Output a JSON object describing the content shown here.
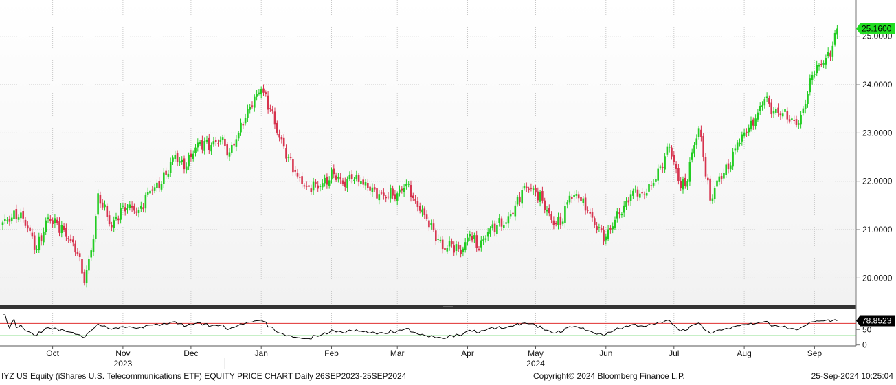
{
  "chart_data": {
    "type": "candlestick",
    "title": "",
    "security": "IYZ US Equity (iShares U.S. Telecommunications ETF)",
    "chart_kind": "EQUITY PRICE CHART",
    "period": "Daily 26SEP2023-25SEP2024",
    "copyright": "Copyright© 2024 Bloomberg Finance L.P.",
    "timestamp": "25-Sep-2024 10:25:04",
    "last_price": 25.16,
    "last_price_label": "25.1600",
    "price_axis": {
      "ylim": [
        19.45,
        25.75
      ],
      "ticks": [
        20,
        21,
        22,
        23,
        24,
        25
      ],
      "tick_labels": [
        "20.0000",
        "21.0000",
        "22.0000",
        "23.0000",
        "24.0000",
        "25.0000"
      ],
      "position": "right"
    },
    "x_axis": {
      "months": [
        {
          "label": "Oct",
          "offset": 22
        },
        {
          "label": "Nov",
          "offset": 53
        },
        {
          "label": "Dec",
          "offset": 83
        },
        {
          "label": "Jan",
          "offset": 114
        },
        {
          "label": "Feb",
          "offset": 145
        },
        {
          "label": "Mar",
          "offset": 174
        },
        {
          "label": "Apr",
          "offset": 205
        },
        {
          "label": "May",
          "offset": 235
        },
        {
          "label": "Jun",
          "offset": 266
        },
        {
          "label": "Jul",
          "offset": 296
        },
        {
          "label": "Aug",
          "offset": 327
        },
        {
          "label": "Sep",
          "offset": 358
        }
      ],
      "years": [
        {
          "label": "2023",
          "offset": 53
        },
        {
          "label": "2024",
          "offset": 235
        }
      ],
      "year_divider_offset": 98
    },
    "close_anchors": [
      [
        0,
        21.15
      ],
      [
        8,
        21.35
      ],
      [
        15,
        20.6
      ],
      [
        20,
        21.25
      ],
      [
        27,
        21.0
      ],
      [
        33,
        20.5
      ],
      [
        36,
        19.9
      ],
      [
        40,
        20.8
      ],
      [
        42,
        21.75
      ],
      [
        48,
        21.05
      ],
      [
        53,
        21.5
      ],
      [
        60,
        21.4
      ],
      [
        65,
        21.8
      ],
      [
        70,
        21.95
      ],
      [
        76,
        22.55
      ],
      [
        80,
        22.25
      ],
      [
        86,
        22.8
      ],
      [
        92,
        22.75
      ],
      [
        96,
        22.85
      ],
      [
        100,
        22.6
      ],
      [
        104,
        23.0
      ],
      [
        108,
        23.5
      ],
      [
        114,
        23.9
      ],
      [
        118,
        23.5
      ],
      [
        122,
        22.9
      ],
      [
        126,
        22.5
      ],
      [
        130,
        22.1
      ],
      [
        134,
        21.9
      ],
      [
        140,
        21.9
      ],
      [
        146,
        22.15
      ],
      [
        150,
        21.95
      ],
      [
        154,
        22.05
      ],
      [
        158,
        22.0
      ],
      [
        162,
        21.8
      ],
      [
        168,
        21.7
      ],
      [
        174,
        21.75
      ],
      [
        178,
        21.95
      ],
      [
        182,
        21.6
      ],
      [
        186,
        21.3
      ],
      [
        190,
        21.0
      ],
      [
        194,
        20.6
      ],
      [
        198,
        20.7
      ],
      [
        202,
        20.5
      ],
      [
        206,
        20.9
      ],
      [
        210,
        20.6
      ],
      [
        214,
        20.95
      ],
      [
        218,
        21.1
      ],
      [
        222,
        21.15
      ],
      [
        226,
        21.5
      ],
      [
        230,
        21.9
      ],
      [
        234,
        21.85
      ],
      [
        238,
        21.6
      ],
      [
        242,
        21.2
      ],
      [
        246,
        21.1
      ],
      [
        250,
        21.7
      ],
      [
        254,
        21.65
      ],
      [
        258,
        21.4
      ],
      [
        262,
        21.0
      ],
      [
        266,
        20.85
      ],
      [
        270,
        21.2
      ],
      [
        274,
        21.5
      ],
      [
        278,
        21.8
      ],
      [
        282,
        21.75
      ],
      [
        286,
        21.9
      ],
      [
        290,
        22.3
      ],
      [
        294,
        22.7
      ],
      [
        296,
        22.4
      ],
      [
        298,
        22.0
      ],
      [
        301,
        21.9
      ],
      [
        304,
        22.6
      ],
      [
        307,
        23.1
      ],
      [
        309,
        22.5
      ],
      [
        312,
        21.6
      ],
      [
        316,
        22.1
      ],
      [
        320,
        22.25
      ],
      [
        324,
        22.8
      ],
      [
        328,
        23.0
      ],
      [
        332,
        23.3
      ],
      [
        336,
        23.7
      ],
      [
        340,
        23.45
      ],
      [
        344,
        23.4
      ],
      [
        348,
        23.3
      ],
      [
        351,
        23.2
      ],
      [
        354,
        23.6
      ],
      [
        357,
        24.2
      ],
      [
        360,
        24.4
      ],
      [
        363,
        24.55
      ],
      [
        366,
        24.8
      ],
      [
        368,
        25.16
      ]
    ],
    "rsi": {
      "last_value": 78.8523,
      "last_value_label": "78.8523",
      "overbought": 70,
      "oversold": 30,
      "ylim": [
        -3,
        118
      ],
      "ticks": [
        0,
        50
      ],
      "tick_labels": [
        "0",
        "50"
      ]
    },
    "colors": {
      "up": "#22cc22",
      "down": "#d6334e",
      "rsi_line": "#000000",
      "overbought_line": "#e03030",
      "oversold_line": "#20c020",
      "price_tag": "#22dd22",
      "rsi_tag": "#000000",
      "grid": "#c8c8c8"
    }
  }
}
